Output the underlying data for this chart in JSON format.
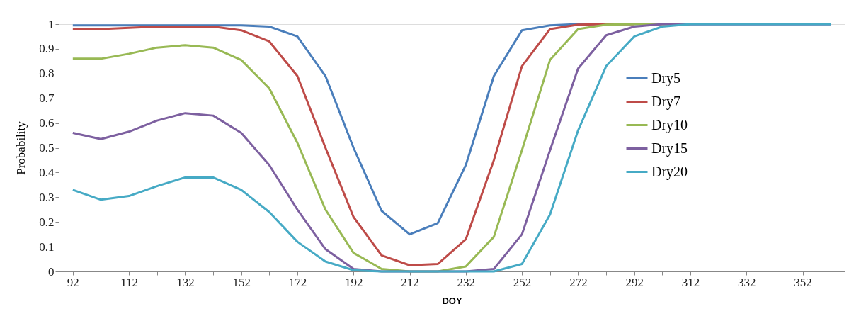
{
  "chart_data": {
    "type": "line",
    "xlabel": "DOY",
    "ylabel": "Probability",
    "categories": [
      "92",
      null,
      "112",
      null,
      "132",
      null,
      "152",
      null,
      "172",
      null,
      "192",
      null,
      "212",
      null,
      "232",
      null,
      "252",
      null,
      "272",
      null,
      "292",
      null,
      "312",
      null,
      "332",
      null,
      "352",
      null
    ],
    "ylim": [
      0,
      1
    ],
    "yticks": [
      0,
      0.1,
      0.2,
      0.3,
      0.4,
      0.5,
      0.6,
      0.7,
      0.8,
      0.9,
      1
    ],
    "grid": false,
    "legend": "right",
    "marker": "none",
    "line_style": "solid",
    "series": [
      {
        "name": "Dry5",
        "color": "#4a7ebb",
        "values": [
          0.995,
          0.995,
          0.995,
          0.995,
          0.995,
          0.995,
          0.995,
          0.99,
          0.95,
          0.79,
          0.5,
          0.245,
          0.15,
          0.195,
          0.43,
          0.79,
          0.975,
          0.995,
          1,
          1,
          1,
          1,
          1,
          1,
          1,
          1,
          1,
          1
        ]
      },
      {
        "name": "Dry7",
        "color": "#be4b48",
        "values": [
          0.98,
          0.98,
          0.985,
          0.99,
          0.99,
          0.99,
          0.975,
          0.93,
          0.79,
          0.5,
          0.22,
          0.065,
          0.025,
          0.03,
          0.13,
          0.45,
          0.83,
          0.98,
          0.998,
          1,
          1,
          null,
          null,
          null,
          null,
          null,
          null,
          null
        ]
      },
      {
        "name": "Dry10",
        "color": "#98b954",
        "values": [
          0.86,
          0.86,
          0.88,
          0.905,
          0.915,
          0.905,
          0.855,
          0.74,
          0.52,
          0.25,
          0.075,
          0.01,
          0,
          0,
          0.02,
          0.14,
          0.49,
          0.855,
          0.98,
          0.998,
          1,
          1,
          1,
          null,
          null,
          null,
          null,
          null
        ]
      },
      {
        "name": "Dry15",
        "color": "#7d60a0",
        "values": [
          0.56,
          0.535,
          0.565,
          0.61,
          0.64,
          0.63,
          0.56,
          0.43,
          0.25,
          0.09,
          0.01,
          0,
          0,
          0,
          0,
          0.01,
          0.15,
          0.49,
          0.82,
          0.955,
          0.99,
          1,
          1,
          1,
          1,
          1,
          1,
          1
        ]
      },
      {
        "name": "Dry20",
        "color": "#46aac5",
        "values": [
          0.33,
          0.29,
          0.305,
          0.345,
          0.38,
          0.38,
          0.33,
          0.24,
          0.12,
          0.04,
          0.005,
          0,
          0,
          0,
          0,
          0,
          0.03,
          0.23,
          0.57,
          0.83,
          0.95,
          0.99,
          1,
          1,
          1,
          1,
          1,
          1
        ]
      }
    ]
  }
}
